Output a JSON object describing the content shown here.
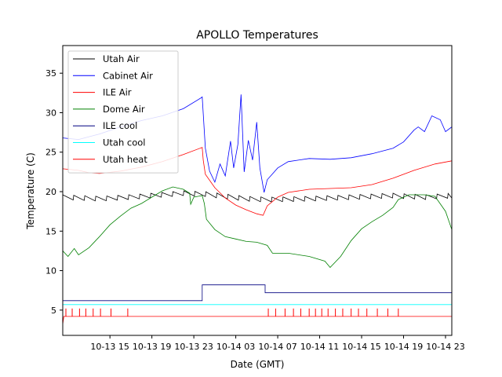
{
  "chart_data": {
    "type": "line",
    "title": "APOLLO Temperatures",
    "xlabel": "Date (GMT)",
    "ylabel": "Temperature (C)",
    "xlim_hours": [
      10.5,
      47.6
    ],
    "ylim": [
      1.8,
      38.5
    ],
    "x_ticks": [
      {
        "hour": 15,
        "label": "10-13 15"
      },
      {
        "hour": 19,
        "label": "10-13 19"
      },
      {
        "hour": 23,
        "label": "10-13 23"
      },
      {
        "hour": 27,
        "label": "10-14 03"
      },
      {
        "hour": 31,
        "label": "10-14 07"
      },
      {
        "hour": 35,
        "label": "10-14 11"
      },
      {
        "hour": 39,
        "label": "10-14 15"
      },
      {
        "hour": 43,
        "label": "10-14 19"
      },
      {
        "hour": 47,
        "label": "10-14 23"
      }
    ],
    "y_ticks": [
      5,
      10,
      15,
      20,
      25,
      30,
      35
    ],
    "legend_position": "top-left",
    "series": [
      {
        "name": "Utah Air",
        "color": "#000000",
        "sawtooth": 0.6,
        "points": [
          [
            10.5,
            19.3
          ],
          [
            14,
            19.1
          ],
          [
            18,
            19.4
          ],
          [
            22,
            19.8
          ],
          [
            24,
            19.7
          ],
          [
            28,
            19.1
          ],
          [
            30,
            19.0
          ],
          [
            34,
            19.1
          ],
          [
            38,
            19.3
          ],
          [
            42,
            19.5
          ],
          [
            45,
            19.3
          ],
          [
            47.6,
            19.5
          ]
        ]
      },
      {
        "name": "Cabinet Air",
        "color": "#0000ff",
        "points": [
          [
            10.5,
            26.8
          ],
          [
            12,
            26.6
          ],
          [
            14,
            27.3
          ],
          [
            16,
            28.2
          ],
          [
            18,
            29.0
          ],
          [
            20,
            29.6
          ],
          [
            22,
            30.5
          ],
          [
            23.6,
            31.8
          ],
          [
            23.8,
            32.0
          ],
          [
            24.1,
            25.5
          ],
          [
            24.5,
            22.6
          ],
          [
            25,
            21.2
          ],
          [
            25.5,
            23.5
          ],
          [
            26,
            22.0
          ],
          [
            26.5,
            26.4
          ],
          [
            26.8,
            23.0
          ],
          [
            27.2,
            26.0
          ],
          [
            27.5,
            32.3
          ],
          [
            27.8,
            22.5
          ],
          [
            28.2,
            26.5
          ],
          [
            28.6,
            24.0
          ],
          [
            29,
            28.8
          ],
          [
            29.3,
            23.0
          ],
          [
            29.7,
            19.9
          ],
          [
            30,
            21.5
          ],
          [
            31,
            23.0
          ],
          [
            32,
            23.8
          ],
          [
            34,
            24.2
          ],
          [
            36,
            24.1
          ],
          [
            38,
            24.3
          ],
          [
            40,
            24.8
          ],
          [
            42,
            25.5
          ],
          [
            43,
            26.3
          ],
          [
            44,
            27.8
          ],
          [
            44.4,
            28.2
          ],
          [
            45,
            27.6
          ],
          [
            45.7,
            29.6
          ],
          [
            46.5,
            29.1
          ],
          [
            47,
            27.6
          ],
          [
            47.6,
            28.2
          ]
        ]
      },
      {
        "name": "ILE Air",
        "color": "#ff0000",
        "points": [
          [
            10.5,
            22.9
          ],
          [
            12,
            22.7
          ],
          [
            13,
            22.4
          ],
          [
            14,
            22.3
          ],
          [
            16,
            22.6
          ],
          [
            18,
            23.1
          ],
          [
            20,
            23.8
          ],
          [
            22,
            24.7
          ],
          [
            23.8,
            25.6
          ],
          [
            23.9,
            24.0
          ],
          [
            24.1,
            22.2
          ],
          [
            25,
            20.5
          ],
          [
            26,
            19.2
          ],
          [
            27,
            18.3
          ],
          [
            28,
            17.7
          ],
          [
            29,
            17.2
          ],
          [
            29.6,
            17.0
          ],
          [
            30,
            18.2
          ],
          [
            31,
            19.3
          ],
          [
            32,
            19.9
          ],
          [
            34,
            20.3
          ],
          [
            36,
            20.4
          ],
          [
            38,
            20.5
          ],
          [
            40,
            20.9
          ],
          [
            42,
            21.7
          ],
          [
            44,
            22.7
          ],
          [
            46,
            23.5
          ],
          [
            47.6,
            23.9
          ]
        ]
      },
      {
        "name": "Dome Air",
        "color": "#008000",
        "points": [
          [
            10.5,
            12.5
          ],
          [
            11,
            11.8
          ],
          [
            11.6,
            12.8
          ],
          [
            12,
            12.0
          ],
          [
            13,
            12.9
          ],
          [
            14,
            14.3
          ],
          [
            15,
            15.8
          ],
          [
            16,
            16.9
          ],
          [
            17,
            17.9
          ],
          [
            18,
            18.5
          ],
          [
            19,
            19.3
          ],
          [
            20,
            20.1
          ],
          [
            21,
            20.6
          ],
          [
            22,
            20.3
          ],
          [
            22.6,
            19.8
          ],
          [
            22.7,
            18.4
          ],
          [
            23,
            19.3
          ],
          [
            23.8,
            19.5
          ],
          [
            24,
            18.5
          ],
          [
            24.2,
            16.5
          ],
          [
            25,
            15.2
          ],
          [
            26,
            14.3
          ],
          [
            27,
            14.0
          ],
          [
            28,
            13.7
          ],
          [
            29,
            13.6
          ],
          [
            30,
            13.2
          ],
          [
            30.5,
            12.2
          ],
          [
            32,
            12.2
          ],
          [
            34,
            11.8
          ],
          [
            35.5,
            11.2
          ],
          [
            36,
            10.4
          ],
          [
            37,
            11.8
          ],
          [
            38,
            13.8
          ],
          [
            39,
            15.3
          ],
          [
            40,
            16.2
          ],
          [
            41,
            17.0
          ],
          [
            42,
            18.0
          ],
          [
            42.5,
            19.0
          ],
          [
            43.5,
            19.6
          ],
          [
            45,
            19.6
          ],
          [
            46,
            19.4
          ],
          [
            47,
            17.5
          ],
          [
            47.6,
            15.2
          ]
        ]
      },
      {
        "name": "ILE cool",
        "color": "#000080",
        "step": true,
        "points": [
          [
            10.5,
            6.2
          ],
          [
            23.8,
            6.2
          ],
          [
            23.8,
            8.2
          ],
          [
            29.8,
            8.2
          ],
          [
            29.8,
            7.2
          ],
          [
            47.6,
            7.2
          ]
        ]
      },
      {
        "name": "Utah cool",
        "color": "#00ffff",
        "points": [
          [
            10.5,
            5.7
          ],
          [
            47.6,
            5.7
          ]
        ]
      },
      {
        "name": "Utah heat",
        "color": "#ff0000",
        "base": 4.2,
        "spike_top": 5.2,
        "spike_hours": [
          10.8,
          11.4,
          12.1,
          12.7,
          13.4,
          14.1,
          15.1,
          16.7,
          30.1,
          30.8,
          31.7,
          32.5,
          33.2,
          34.0,
          34.6,
          35.2,
          35.8,
          36.5,
          37.2,
          38.0,
          38.7,
          39.5,
          40.5,
          41.5,
          42.5
        ],
        "points": [
          [
            10.5,
            3.2
          ],
          [
            10.6,
            4.2
          ],
          [
            47.6,
            4.2
          ]
        ]
      }
    ]
  }
}
